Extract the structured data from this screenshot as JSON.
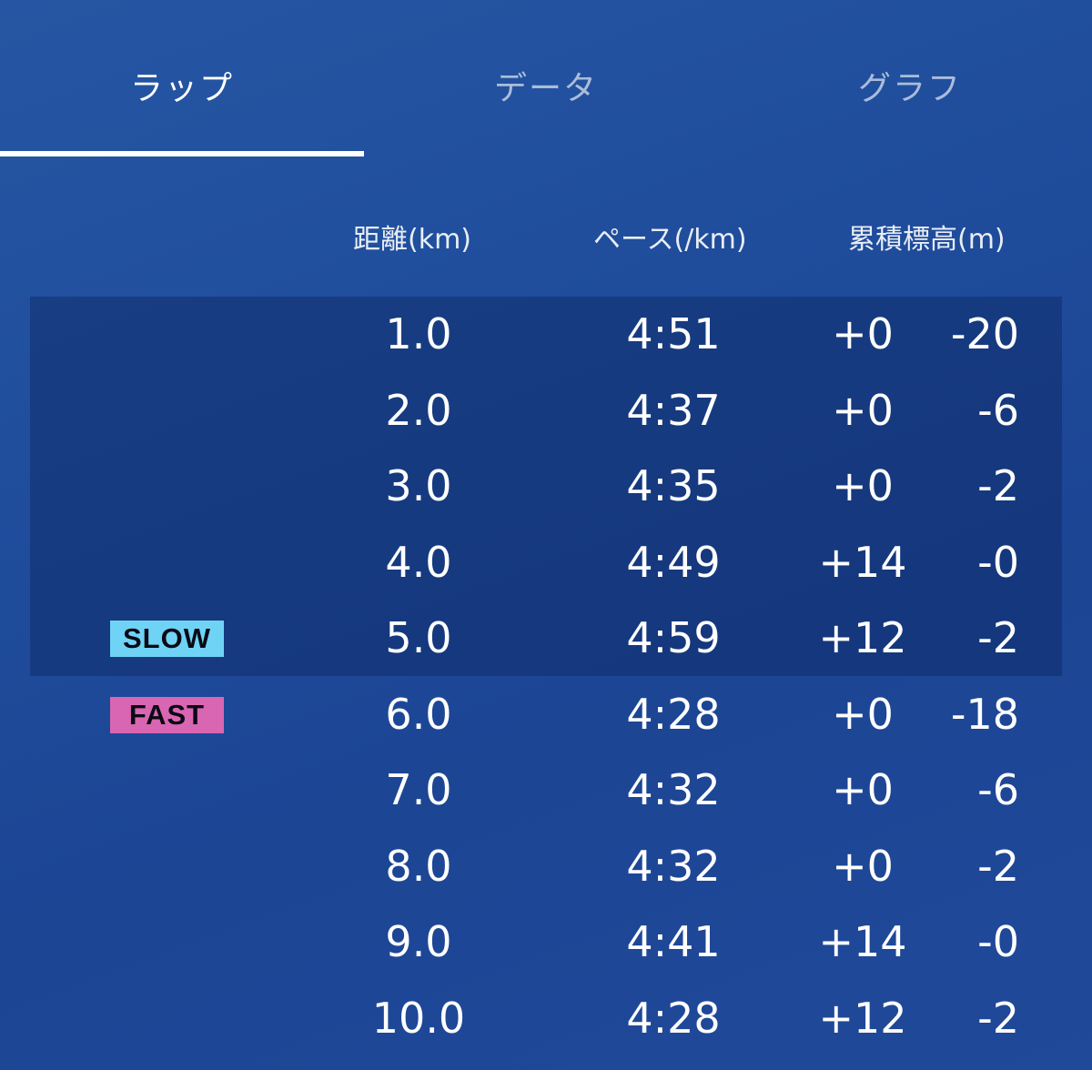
{
  "tabs": [
    {
      "label": "ラップ",
      "active": true
    },
    {
      "label": "データ",
      "active": false
    },
    {
      "label": "グラフ",
      "active": false
    }
  ],
  "columns": {
    "distance": "距離(km)",
    "pace": "ペース(/km)",
    "elevation": "累積標高(m)"
  },
  "badges": {
    "slow": "SLOW",
    "fast": "FAST"
  },
  "colors": {
    "slow_badge": "#6fd3f6",
    "fast_badge": "#d966b2",
    "accent_indicator": "#ffffff"
  },
  "laps": [
    {
      "distance": "1.0",
      "pace": "4:51",
      "gain": "+0",
      "loss": "-20"
    },
    {
      "distance": "2.0",
      "pace": "4:37",
      "gain": "+0",
      "loss": "-6"
    },
    {
      "distance": "3.0",
      "pace": "4:35",
      "gain": "+0",
      "loss": "-2"
    },
    {
      "distance": "4.0",
      "pace": "4:49",
      "gain": "+14",
      "loss": "-0"
    },
    {
      "distance": "5.0",
      "pace": "4:59",
      "gain": "+12",
      "loss": "-2"
    },
    {
      "distance": "6.0",
      "pace": "4:28",
      "gain": "+0",
      "loss": "-18"
    },
    {
      "distance": "7.0",
      "pace": "4:32",
      "gain": "+0",
      "loss": "-6"
    },
    {
      "distance": "8.0",
      "pace": "4:32",
      "gain": "+0",
      "loss": "-2"
    },
    {
      "distance": "9.0",
      "pace": "4:41",
      "gain": "+14",
      "loss": "-0"
    },
    {
      "distance": "10.0",
      "pace": "4:28",
      "gain": "+12",
      "loss": "-2"
    }
  ]
}
